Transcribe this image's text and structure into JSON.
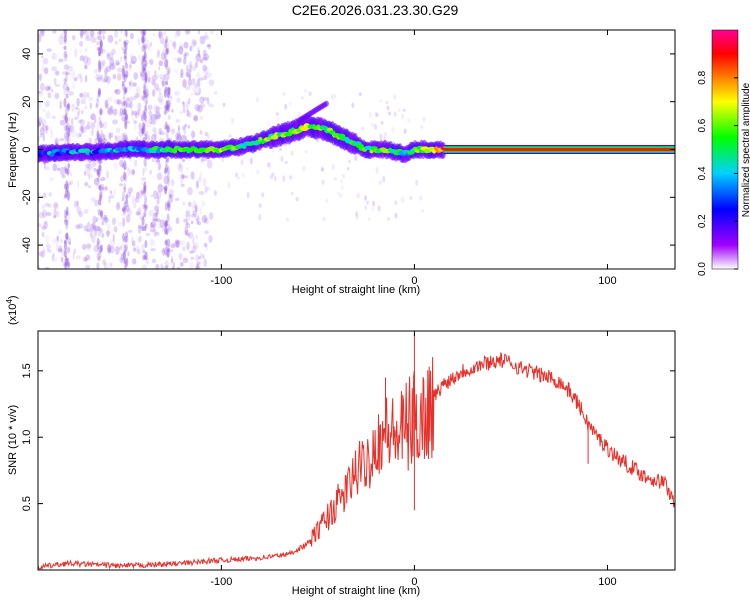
{
  "title": "C2E6.2026.031.23.30.G29",
  "chart_data": [
    {
      "type": "heatmap",
      "name": "spectrogram",
      "xlabel": "Height of straight line (km)",
      "ylabel": "Frequency (Hz)",
      "xlim": [
        -195,
        135
      ],
      "ylim": [
        -50,
        50
      ],
      "xticks": [
        -100,
        0,
        100
      ],
      "xtick_labels": [
        "-100",
        "0",
        "100"
      ],
      "yticks": [
        -40,
        -20,
        0,
        20,
        40
      ],
      "ytick_labels": [
        "-40",
        "-20",
        "0",
        "20",
        "40"
      ],
      "colorbar": {
        "label": "Normalized spectral amplitude",
        "range": [
          0,
          1
        ],
        "ticks": [
          0.0,
          0.2,
          0.4,
          0.6,
          0.8
        ],
        "tick_labels": [
          "0.0",
          "0.2",
          "0.4",
          "0.6",
          "0.8"
        ],
        "colors": [
          "#ffffff",
          "#a000ff",
          "#0000ff",
          "#00d0ff",
          "#00ff00",
          "#ffff00",
          "#ff8000",
          "#ff0000",
          "#ff0090"
        ]
      },
      "ridge": {
        "x": [
          -195,
          -180,
          -165,
          -150,
          -135,
          -120,
          -100,
          -85,
          -75,
          -65,
          -55,
          -45,
          -35,
          -25,
          -15,
          -5,
          0,
          10,
          15,
          135
        ],
        "freq": [
          -2,
          -1,
          -1,
          0,
          0,
          0,
          0,
          2,
          5,
          7,
          10,
          8,
          4,
          0,
          0,
          -2,
          0,
          0,
          0,
          0
        ],
        "amplitude": [
          0.3,
          0.35,
          0.35,
          0.4,
          0.45,
          0.5,
          0.6,
          0.45,
          0.55,
          0.6,
          0.65,
          0.55,
          0.5,
          0.5,
          0.6,
          0.4,
          0.55,
          0.7,
          0.85,
          0.9
        ]
      }
    },
    {
      "type": "line",
      "name": "snr",
      "xlabel": "Height of straight line (km)",
      "ylabel": "SNR (10 * v/v)",
      "scale_label": "(x10",
      "scale_exp": "4",
      "scale_close": ")",
      "xlim": [
        -195,
        135
      ],
      "ylim": [
        0,
        1.8
      ],
      "xticks": [
        -100,
        0,
        100
      ],
      "xtick_labels": [
        "-100",
        "0",
        "100"
      ],
      "yticks": [
        0.5,
        1.0,
        1.5
      ],
      "ytick_labels": [
        "0.5",
        "1.0",
        "1.5"
      ],
      "series": [
        {
          "name": "SNR",
          "color": "#e8302a",
          "x": [
            -195,
            -180,
            -165,
            -150,
            -135,
            -120,
            -105,
            -90,
            -75,
            -65,
            -55,
            -50,
            -45,
            -40,
            -35,
            -30,
            -25,
            -20,
            -15,
            -10,
            -5,
            0,
            5,
            10,
            15,
            20,
            25,
            30,
            35,
            40,
            45,
            50,
            55,
            60,
            65,
            70,
            75,
            80,
            85,
            90,
            95,
            100,
            105,
            110,
            115,
            120,
            125,
            130,
            135
          ],
          "y": [
            0.02,
            0.05,
            0.04,
            0.03,
            0.04,
            0.05,
            0.07,
            0.08,
            0.1,
            0.12,
            0.2,
            0.3,
            0.4,
            0.5,
            0.6,
            0.75,
            0.8,
            0.95,
            1.05,
            1.0,
            1.05,
            1.15,
            1.15,
            1.3,
            1.4,
            1.45,
            1.5,
            1.52,
            1.55,
            1.57,
            1.58,
            1.56,
            1.52,
            1.5,
            1.47,
            1.45,
            1.42,
            1.35,
            1.25,
            1.1,
            1.0,
            0.92,
            0.85,
            0.8,
            0.75,
            0.7,
            0.68,
            0.65,
            0.5
          ],
          "peaks": [
            {
              "x": 0,
              "y": 1.78
            },
            {
              "x": -15,
              "y": 1.45
            },
            {
              "x": -10,
              "y": 1.05
            },
            {
              "x": 0,
              "y": 0.45
            },
            {
              "x": 45,
              "y": 1.6
            },
            {
              "x": 90,
              "y": 0.8
            }
          ]
        }
      ]
    }
  ]
}
